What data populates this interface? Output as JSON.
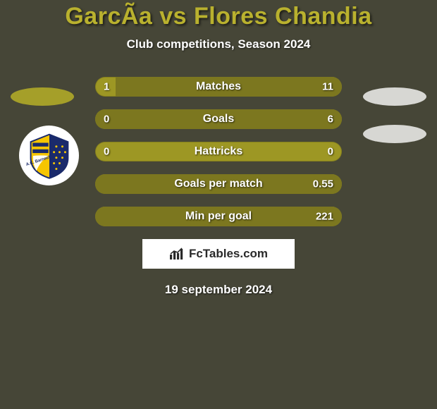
{
  "colors": {
    "background": "#464637",
    "title": "#b9b12e",
    "ellipse_left": "#a59f29",
    "ellipse_right": "#d7d7d3",
    "bar_base": "#9d9724",
    "bar_fill_player2": "#7c771f",
    "branding_bg": "#ffffff"
  },
  "title": "GarcÃ­a vs Flores Chandia",
  "subtitle": "Club competitions, Season 2024",
  "stats": [
    {
      "label": "Matches",
      "p1": "1",
      "p2": "11",
      "p1_ratio": 0.083,
      "p2_ratio": 0.917
    },
    {
      "label": "Goals",
      "p1": "0",
      "p2": "6",
      "p1_ratio": 0.0,
      "p2_ratio": 1.0
    },
    {
      "label": "Hattricks",
      "p1": "0",
      "p2": "0",
      "p1_ratio": 0.0,
      "p2_ratio": 0.0
    },
    {
      "label": "Goals per match",
      "p1": "",
      "p2": "0.55",
      "p1_ratio": 0.0,
      "p2_ratio": 1.0
    },
    {
      "label": "Min per goal",
      "p1": "",
      "p2": "221",
      "p1_ratio": 0.0,
      "p2_ratio": 1.0
    }
  ],
  "branding": "FcTables.com",
  "date": "19 september 2024",
  "crest_label": "A.C. Barneche"
}
